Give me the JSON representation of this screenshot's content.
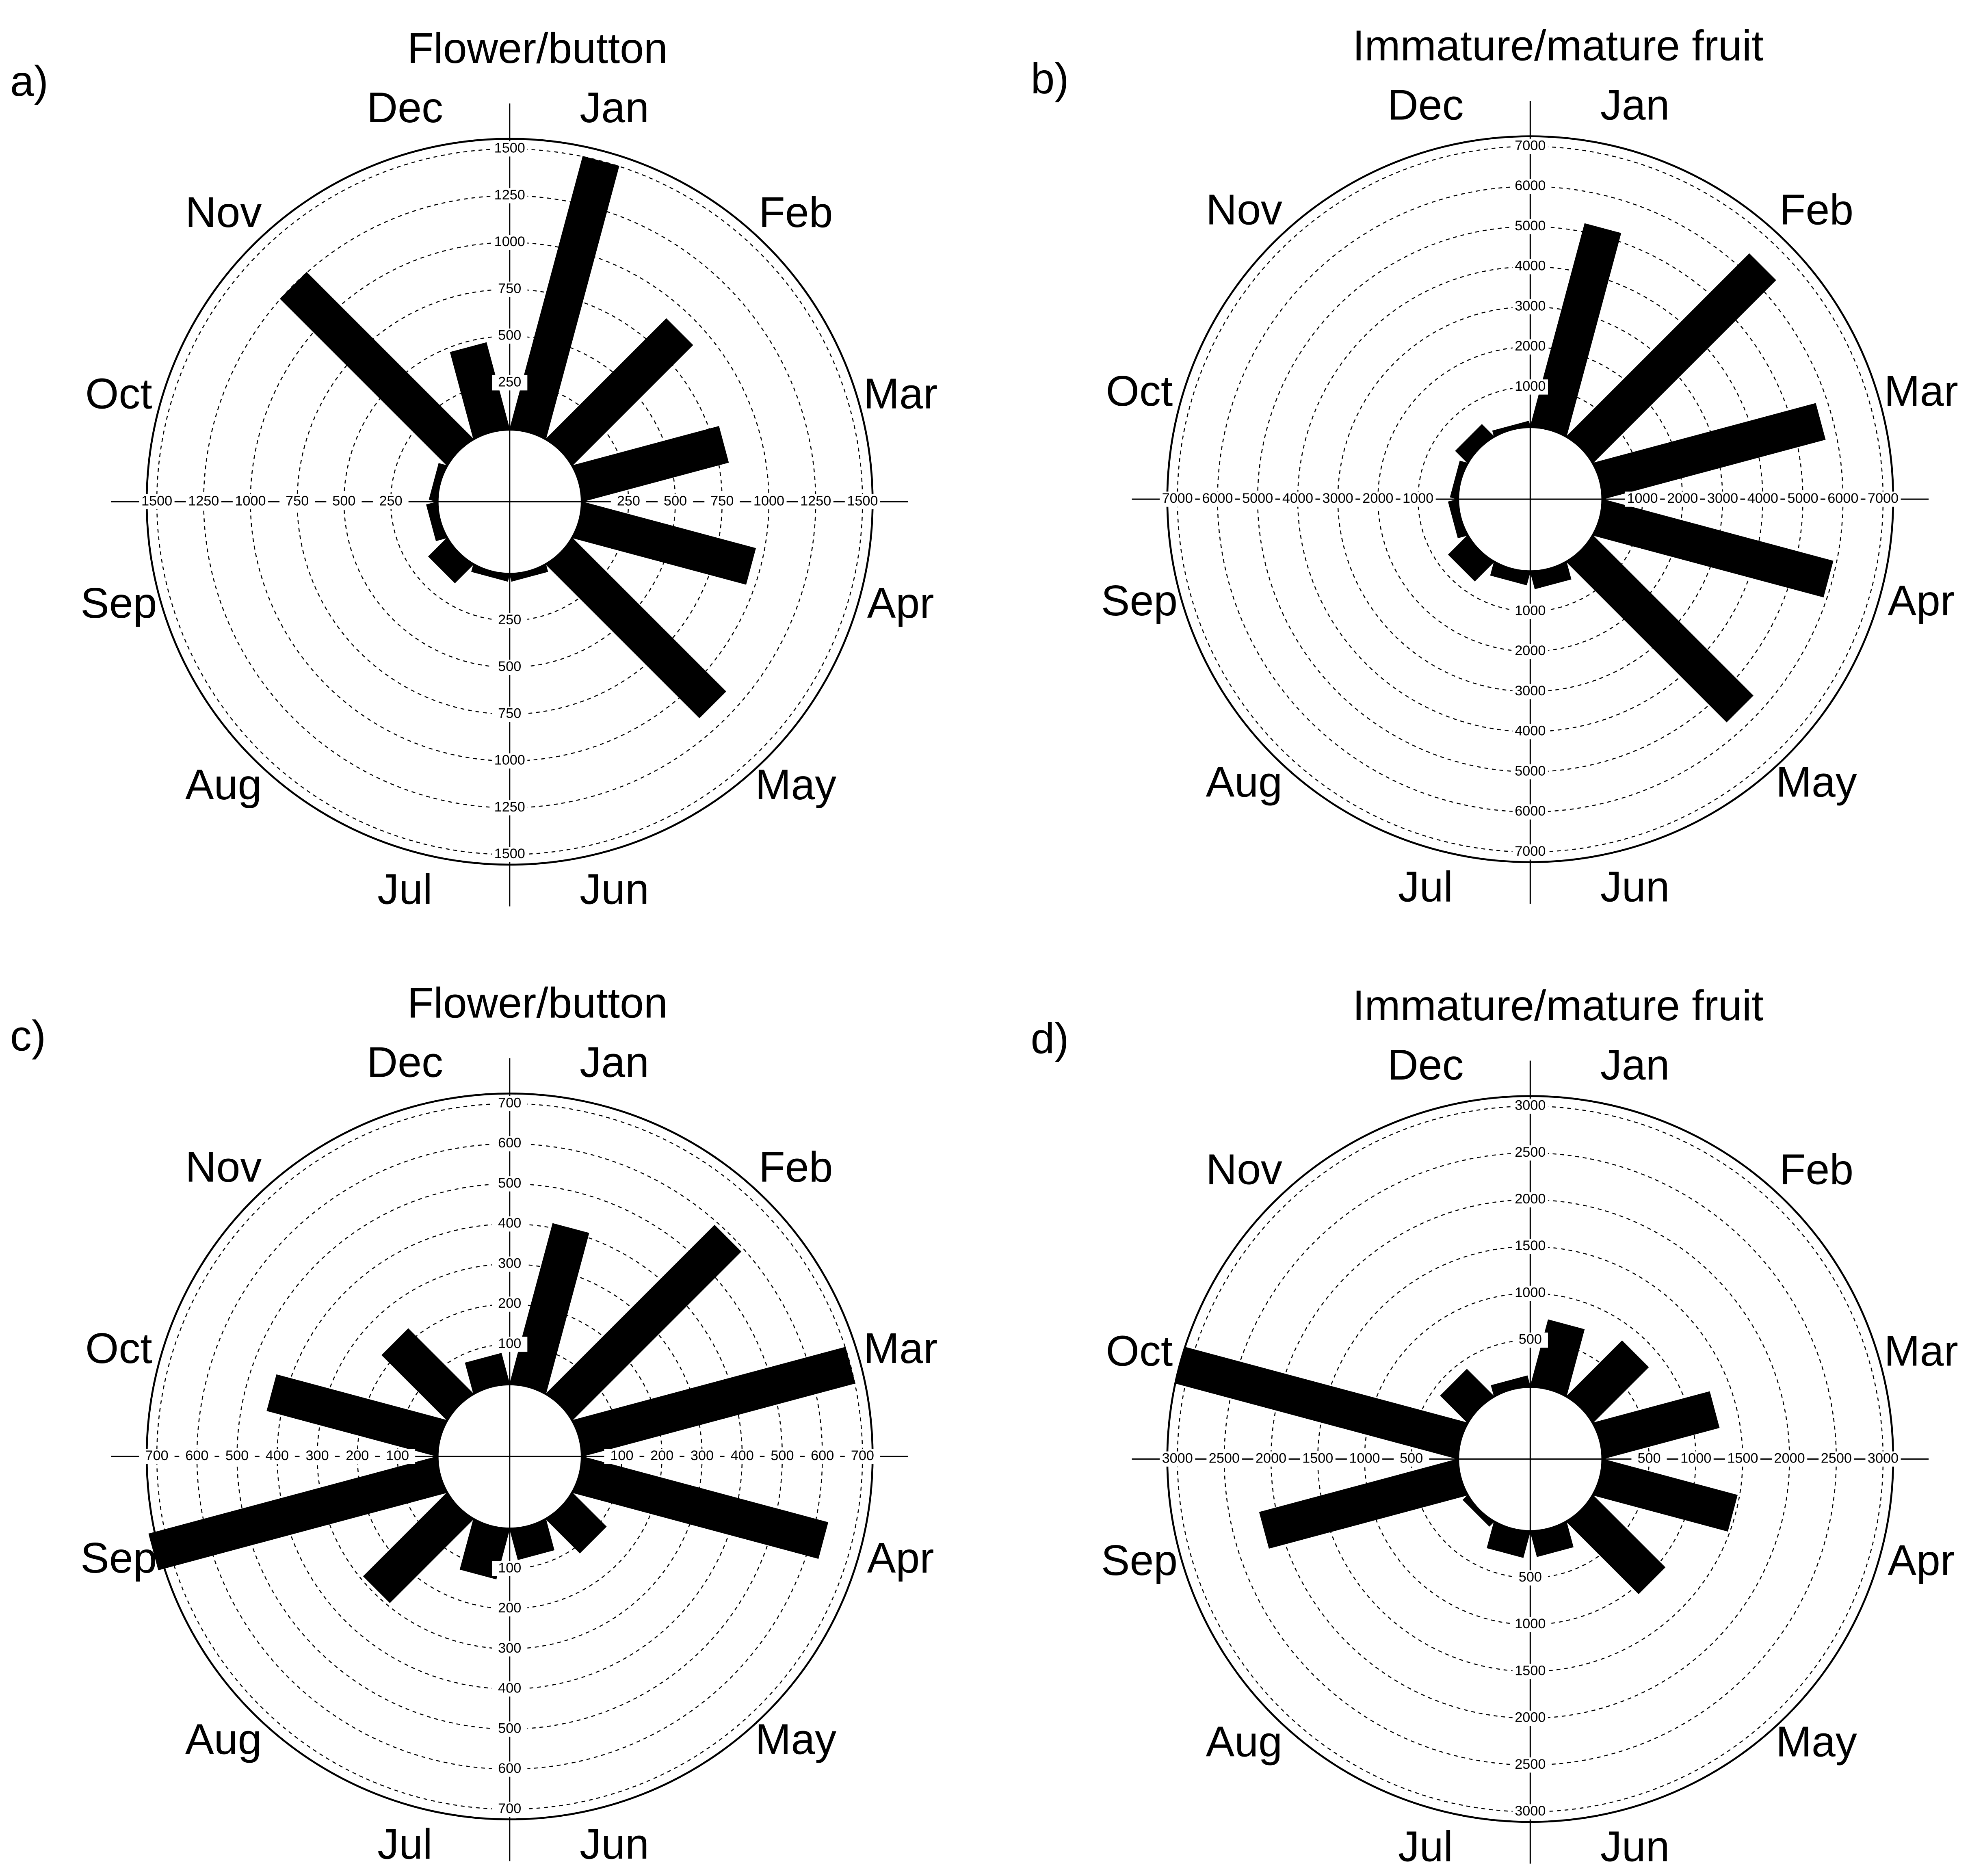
{
  "chart_data": [
    {
      "type": "rose",
      "panel": "a)",
      "title": "Flower/button",
      "categories": [
        "Jan",
        "Feb",
        "Mar",
        "Apr",
        "May",
        "Jun",
        "Jul",
        "Aug",
        "Sep",
        "Oct",
        "Nov",
        "Dec"
      ],
      "values": [
        1500,
        900,
        800,
        950,
        1150,
        30,
        30,
        130,
        50,
        35,
        1250,
        470
      ],
      "rlim": [
        0,
        1500
      ],
      "rticks": [
        250,
        500,
        750,
        1000,
        1250,
        1500
      ],
      "color": "#000000"
    },
    {
      "type": "rose",
      "panel": "b)",
      "title": "Immature/mature fruit",
      "categories": [
        "Jan",
        "Feb",
        "Mar",
        "Apr",
        "May",
        "Jun",
        "Jul",
        "Aug",
        "Sep",
        "Oct",
        "Nov",
        "Dec"
      ],
      "values": [
        5200,
        6400,
        5700,
        5900,
        5600,
        400,
        300,
        630,
        200,
        150,
        380,
        100
      ],
      "rlim": [
        0,
        7000
      ],
      "rticks": [
        1000,
        2000,
        3000,
        4000,
        5000,
        6000,
        7000
      ],
      "color": "#000000"
    },
    {
      "type": "rose",
      "panel": "c)",
      "title": "Flower/button",
      "categories": [
        "Jan",
        "Feb",
        "Mar",
        "Apr",
        "May",
        "Jun",
        "Jul",
        "Aug",
        "Sep",
        "Oct",
        "Nov",
        "Dec"
      ],
      "values": [
        410,
        590,
        700,
        630,
        115,
        75,
        125,
        290,
        740,
        435,
        225,
        75
      ],
      "rlim": [
        0,
        700
      ],
      "rticks": [
        100,
        200,
        300,
        400,
        500,
        600,
        700
      ],
      "color": "#000000"
    },
    {
      "type": "rose",
      "panel": "d)",
      "title": "Immature/mature fruit",
      "categories": [
        "Jan",
        "Feb",
        "Mar",
        "Apr",
        "May",
        "Jun",
        "Jul",
        "Aug",
        "Sep",
        "Oct",
        "Nov",
        "Dec"
      ],
      "values": [
        720,
        820,
        1270,
        1470,
        1070,
        260,
        270,
        50,
        2175,
        3100,
        390,
        100
      ],
      "rlim": [
        0,
        3000
      ],
      "rticks": [
        500,
        1000,
        1500,
        2000,
        2500,
        3000
      ],
      "color": "#000000"
    }
  ]
}
